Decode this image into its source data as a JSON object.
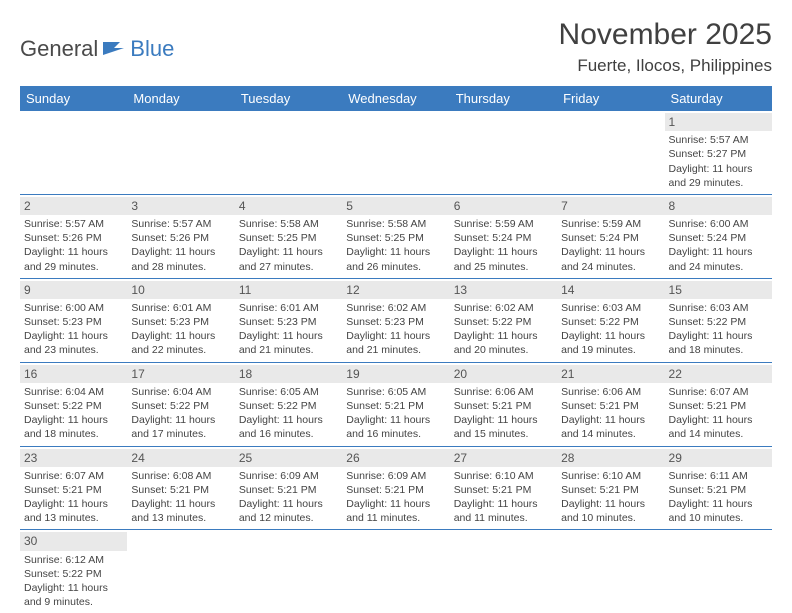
{
  "logo": {
    "text1": "General",
    "text2": "Blue"
  },
  "title": "November 2025",
  "location": "Fuerte, Ilocos, Philippines",
  "day_headers": [
    "Sunday",
    "Monday",
    "Tuesday",
    "Wednesday",
    "Thursday",
    "Friday",
    "Saturday"
  ],
  "colors": {
    "header_bg": "#3b7bbf",
    "header_text": "#ffffff",
    "daynum_bg": "#e9e9e9",
    "border": "#3b7bbf"
  },
  "weeks": [
    [
      null,
      null,
      null,
      null,
      null,
      null,
      {
        "n": "1",
        "sr": "Sunrise: 5:57 AM",
        "ss": "Sunset: 5:27 PM",
        "d1": "Daylight: 11 hours",
        "d2": "and 29 minutes."
      }
    ],
    [
      {
        "n": "2",
        "sr": "Sunrise: 5:57 AM",
        "ss": "Sunset: 5:26 PM",
        "d1": "Daylight: 11 hours",
        "d2": "and 29 minutes."
      },
      {
        "n": "3",
        "sr": "Sunrise: 5:57 AM",
        "ss": "Sunset: 5:26 PM",
        "d1": "Daylight: 11 hours",
        "d2": "and 28 minutes."
      },
      {
        "n": "4",
        "sr": "Sunrise: 5:58 AM",
        "ss": "Sunset: 5:25 PM",
        "d1": "Daylight: 11 hours",
        "d2": "and 27 minutes."
      },
      {
        "n": "5",
        "sr": "Sunrise: 5:58 AM",
        "ss": "Sunset: 5:25 PM",
        "d1": "Daylight: 11 hours",
        "d2": "and 26 minutes."
      },
      {
        "n": "6",
        "sr": "Sunrise: 5:59 AM",
        "ss": "Sunset: 5:24 PM",
        "d1": "Daylight: 11 hours",
        "d2": "and 25 minutes."
      },
      {
        "n": "7",
        "sr": "Sunrise: 5:59 AM",
        "ss": "Sunset: 5:24 PM",
        "d1": "Daylight: 11 hours",
        "d2": "and 24 minutes."
      },
      {
        "n": "8",
        "sr": "Sunrise: 6:00 AM",
        "ss": "Sunset: 5:24 PM",
        "d1": "Daylight: 11 hours",
        "d2": "and 24 minutes."
      }
    ],
    [
      {
        "n": "9",
        "sr": "Sunrise: 6:00 AM",
        "ss": "Sunset: 5:23 PM",
        "d1": "Daylight: 11 hours",
        "d2": "and 23 minutes."
      },
      {
        "n": "10",
        "sr": "Sunrise: 6:01 AM",
        "ss": "Sunset: 5:23 PM",
        "d1": "Daylight: 11 hours",
        "d2": "and 22 minutes."
      },
      {
        "n": "11",
        "sr": "Sunrise: 6:01 AM",
        "ss": "Sunset: 5:23 PM",
        "d1": "Daylight: 11 hours",
        "d2": "and 21 minutes."
      },
      {
        "n": "12",
        "sr": "Sunrise: 6:02 AM",
        "ss": "Sunset: 5:23 PM",
        "d1": "Daylight: 11 hours",
        "d2": "and 21 minutes."
      },
      {
        "n": "13",
        "sr": "Sunrise: 6:02 AM",
        "ss": "Sunset: 5:22 PM",
        "d1": "Daylight: 11 hours",
        "d2": "and 20 minutes."
      },
      {
        "n": "14",
        "sr": "Sunrise: 6:03 AM",
        "ss": "Sunset: 5:22 PM",
        "d1": "Daylight: 11 hours",
        "d2": "and 19 minutes."
      },
      {
        "n": "15",
        "sr": "Sunrise: 6:03 AM",
        "ss": "Sunset: 5:22 PM",
        "d1": "Daylight: 11 hours",
        "d2": "and 18 minutes."
      }
    ],
    [
      {
        "n": "16",
        "sr": "Sunrise: 6:04 AM",
        "ss": "Sunset: 5:22 PM",
        "d1": "Daylight: 11 hours",
        "d2": "and 18 minutes."
      },
      {
        "n": "17",
        "sr": "Sunrise: 6:04 AM",
        "ss": "Sunset: 5:22 PM",
        "d1": "Daylight: 11 hours",
        "d2": "and 17 minutes."
      },
      {
        "n": "18",
        "sr": "Sunrise: 6:05 AM",
        "ss": "Sunset: 5:22 PM",
        "d1": "Daylight: 11 hours",
        "d2": "and 16 minutes."
      },
      {
        "n": "19",
        "sr": "Sunrise: 6:05 AM",
        "ss": "Sunset: 5:21 PM",
        "d1": "Daylight: 11 hours",
        "d2": "and 16 minutes."
      },
      {
        "n": "20",
        "sr": "Sunrise: 6:06 AM",
        "ss": "Sunset: 5:21 PM",
        "d1": "Daylight: 11 hours",
        "d2": "and 15 minutes."
      },
      {
        "n": "21",
        "sr": "Sunrise: 6:06 AM",
        "ss": "Sunset: 5:21 PM",
        "d1": "Daylight: 11 hours",
        "d2": "and 14 minutes."
      },
      {
        "n": "22",
        "sr": "Sunrise: 6:07 AM",
        "ss": "Sunset: 5:21 PM",
        "d1": "Daylight: 11 hours",
        "d2": "and 14 minutes."
      }
    ],
    [
      {
        "n": "23",
        "sr": "Sunrise: 6:07 AM",
        "ss": "Sunset: 5:21 PM",
        "d1": "Daylight: 11 hours",
        "d2": "and 13 minutes."
      },
      {
        "n": "24",
        "sr": "Sunrise: 6:08 AM",
        "ss": "Sunset: 5:21 PM",
        "d1": "Daylight: 11 hours",
        "d2": "and 13 minutes."
      },
      {
        "n": "25",
        "sr": "Sunrise: 6:09 AM",
        "ss": "Sunset: 5:21 PM",
        "d1": "Daylight: 11 hours",
        "d2": "and 12 minutes."
      },
      {
        "n": "26",
        "sr": "Sunrise: 6:09 AM",
        "ss": "Sunset: 5:21 PM",
        "d1": "Daylight: 11 hours",
        "d2": "and 11 minutes."
      },
      {
        "n": "27",
        "sr": "Sunrise: 6:10 AM",
        "ss": "Sunset: 5:21 PM",
        "d1": "Daylight: 11 hours",
        "d2": "and 11 minutes."
      },
      {
        "n": "28",
        "sr": "Sunrise: 6:10 AM",
        "ss": "Sunset: 5:21 PM",
        "d1": "Daylight: 11 hours",
        "d2": "and 10 minutes."
      },
      {
        "n": "29",
        "sr": "Sunrise: 6:11 AM",
        "ss": "Sunset: 5:21 PM",
        "d1": "Daylight: 11 hours",
        "d2": "and 10 minutes."
      }
    ],
    [
      {
        "n": "30",
        "sr": "Sunrise: 6:12 AM",
        "ss": "Sunset: 5:22 PM",
        "d1": "Daylight: 11 hours",
        "d2": "and 9 minutes."
      },
      null,
      null,
      null,
      null,
      null,
      null
    ]
  ]
}
